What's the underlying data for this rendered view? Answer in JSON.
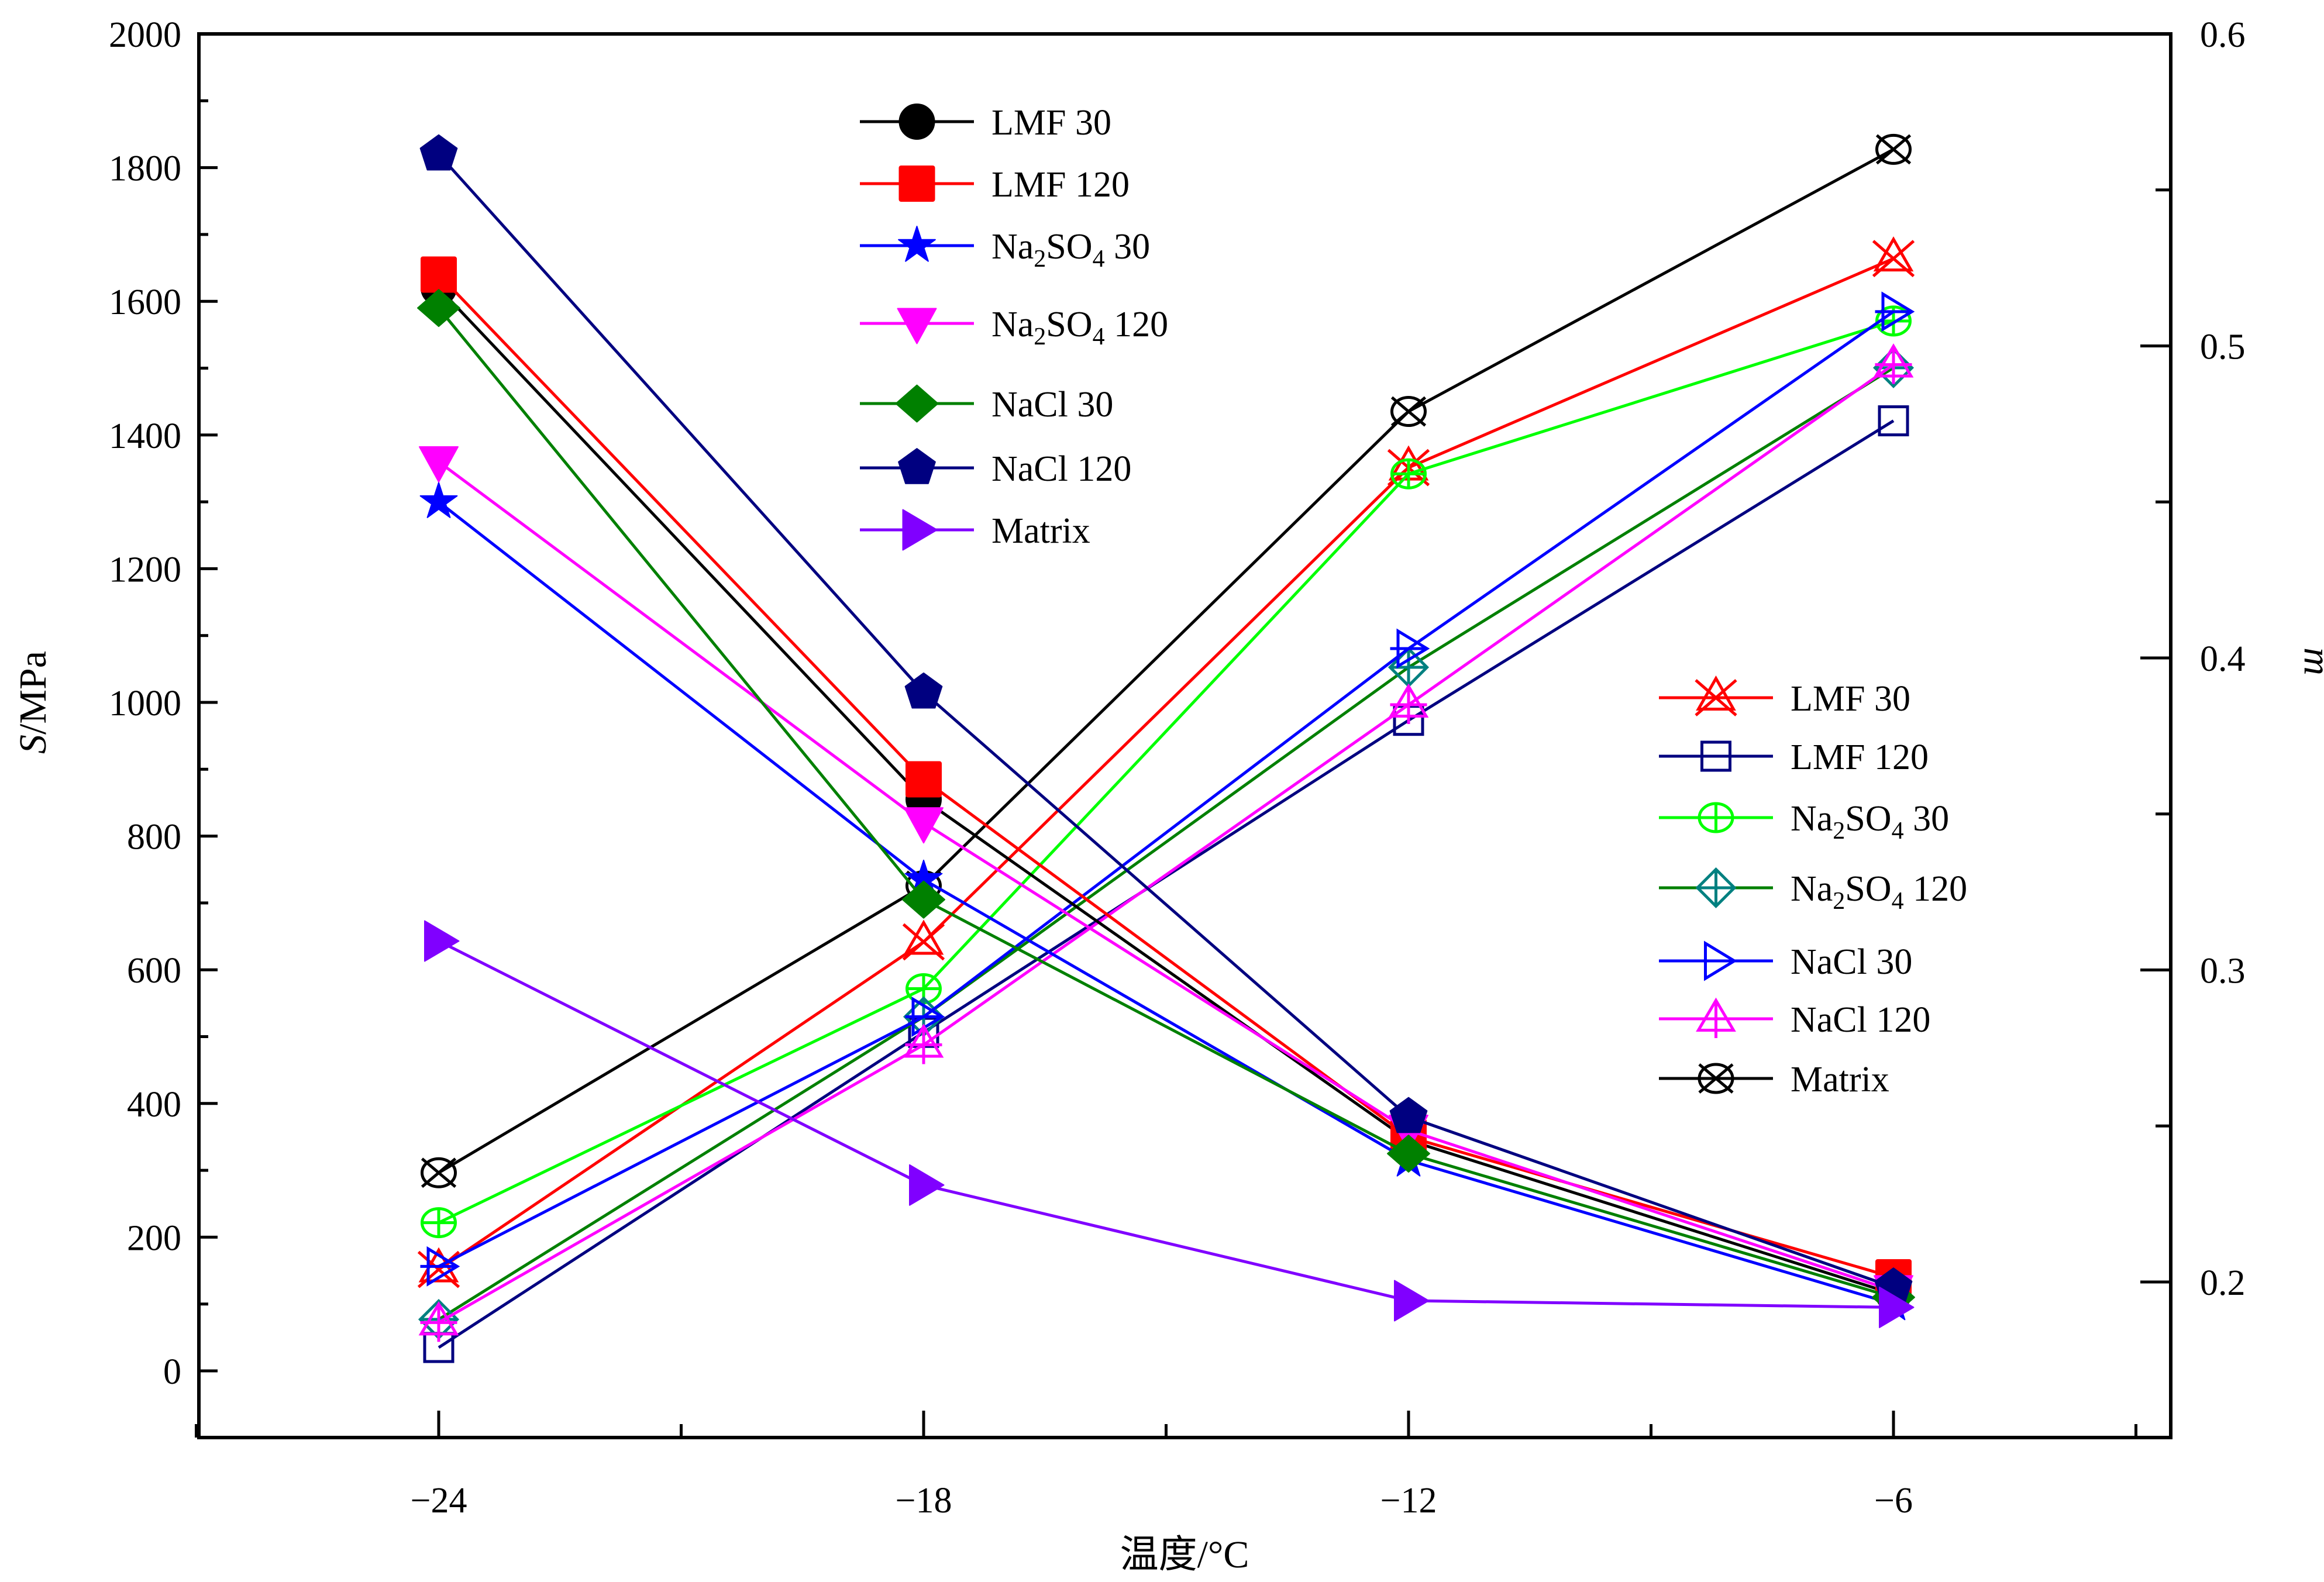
{
  "chart_data": {
    "type": "line",
    "title": "",
    "xlabel": "温度/°C",
    "ylabel": "S/MPa",
    "ylabel_italic_part": "S",
    "ylabel_rest": "/MPa",
    "y2label": "m",
    "x": [
      -24,
      -18,
      -12,
      -6
    ],
    "x_ticks": [
      -24,
      -18,
      -12,
      -6
    ],
    "x_tick_labels": [
      "−24",
      "−18",
      "−12",
      "−6"
    ],
    "x_minor_step": 3,
    "xlim": [
      -27,
      -2.5
    ],
    "ylim": [
      -100,
      2000
    ],
    "y_ticks": [
      0,
      200,
      400,
      600,
      800,
      1000,
      1200,
      1400,
      1600,
      1800,
      2000
    ],
    "y_minor_step": 100,
    "y2lim": [
      0.15,
      0.6
    ],
    "y2_ticks": [
      0.2,
      0.3,
      0.4,
      0.5,
      0.6
    ],
    "y2_tick_labels": [
      "0.2",
      "0.3",
      "0.4",
      "0.5",
      "0.6"
    ],
    "y2_minor_step": 0.05,
    "grid": false,
    "legends": [
      {
        "placement": "top-center",
        "axis": "left",
        "entries": [
          "s_lmf30",
          "s_lmf120",
          "s_na2so4_30",
          "s_na2so4_120",
          "s_nacl30",
          "s_nacl120",
          "s_matrix"
        ]
      },
      {
        "placement": "center-right",
        "axis": "right",
        "entries": [
          "m_lmf30",
          "m_lmf120",
          "m_na2so4_30",
          "m_na2so4_120",
          "m_nacl30",
          "m_nacl120",
          "m_matrix"
        ]
      }
    ],
    "series": [
      {
        "id": "s_lmf30",
        "name": "LMF 30",
        "axis": "left",
        "color": "#000000",
        "marker": "circle-filled",
        "values": [
          1620,
          855,
          345,
          115
        ]
      },
      {
        "id": "s_lmf120",
        "name": "LMF 120",
        "axis": "left",
        "color": "#ff0000",
        "marker": "square-filled",
        "values": [
          1640,
          885,
          350,
          140
        ]
      },
      {
        "id": "s_na2so4_30",
        "name": "Na2SO4 30",
        "axis": "left",
        "color": "#0000ff",
        "marker": "star-filled",
        "values": [
          1300,
          735,
          315,
          100
        ]
      },
      {
        "id": "s_na2so4_120",
        "name": "Na2SO4 120",
        "axis": "left",
        "color": "#ff00ff",
        "marker": "triangle-down-filled",
        "values": [
          1360,
          820,
          360,
          120
        ]
      },
      {
        "id": "s_nacl30",
        "name": "NaCl 30",
        "axis": "left",
        "color": "#008000",
        "marker": "diamond-filled",
        "values": [
          1590,
          705,
          325,
          110
        ]
      },
      {
        "id": "s_nacl120",
        "name": "NaCl 120",
        "axis": "left",
        "color": "#000080",
        "marker": "pentagon-filled",
        "values": [
          1820,
          1015,
          380,
          125
        ]
      },
      {
        "id": "s_matrix",
        "name": "Matrix",
        "axis": "left",
        "color": "#8000ff",
        "marker": "triangle-right-filled",
        "values": [
          643,
          278,
          105,
          95
        ]
      },
      {
        "id": "m_lmf30",
        "name": "LMF 30",
        "axis": "right",
        "color": "#ff0000",
        "marker": "triangle-x-open",
        "values": [
          0.204,
          0.309,
          0.461,
          0.528
        ]
      },
      {
        "id": "m_lmf120",
        "name": "LMF 120",
        "axis": "right",
        "color": "#000080",
        "marker": "square-open",
        "values": [
          0.179,
          0.28,
          0.38,
          0.476
        ]
      },
      {
        "id": "m_na2so4_30",
        "name": "Na2SO4 30",
        "axis": "right",
        "color": "#00ff00",
        "marker": "circle-plus-open",
        "values": [
          0.219,
          0.294,
          0.459,
          0.508
        ]
      },
      {
        "id": "m_na2so4_120",
        "name": "Na2SO4 120",
        "axis": "right",
        "color": "#008080",
        "line_color": "#008000",
        "marker": "diamond-plus-open",
        "values": [
          0.188,
          0.285,
          0.397,
          0.493
        ]
      },
      {
        "id": "m_nacl30",
        "name": "NaCl 30",
        "axis": "right",
        "color": "#0000ff",
        "marker": "triangle-right-plus-open",
        "values": [
          0.205,
          0.285,
          0.403,
          0.511
        ]
      },
      {
        "id": "m_nacl120",
        "name": "NaCl 120",
        "axis": "right",
        "color": "#ff00ff",
        "marker": "triangle-up-plus-open",
        "values": [
          0.187,
          0.276,
          0.385,
          0.494
        ]
      },
      {
        "id": "m_matrix",
        "name": "Matrix",
        "axis": "right",
        "color": "#000000",
        "marker": "circle-x-open",
        "values": [
          0.235,
          0.327,
          0.479,
          0.563
        ]
      }
    ]
  }
}
